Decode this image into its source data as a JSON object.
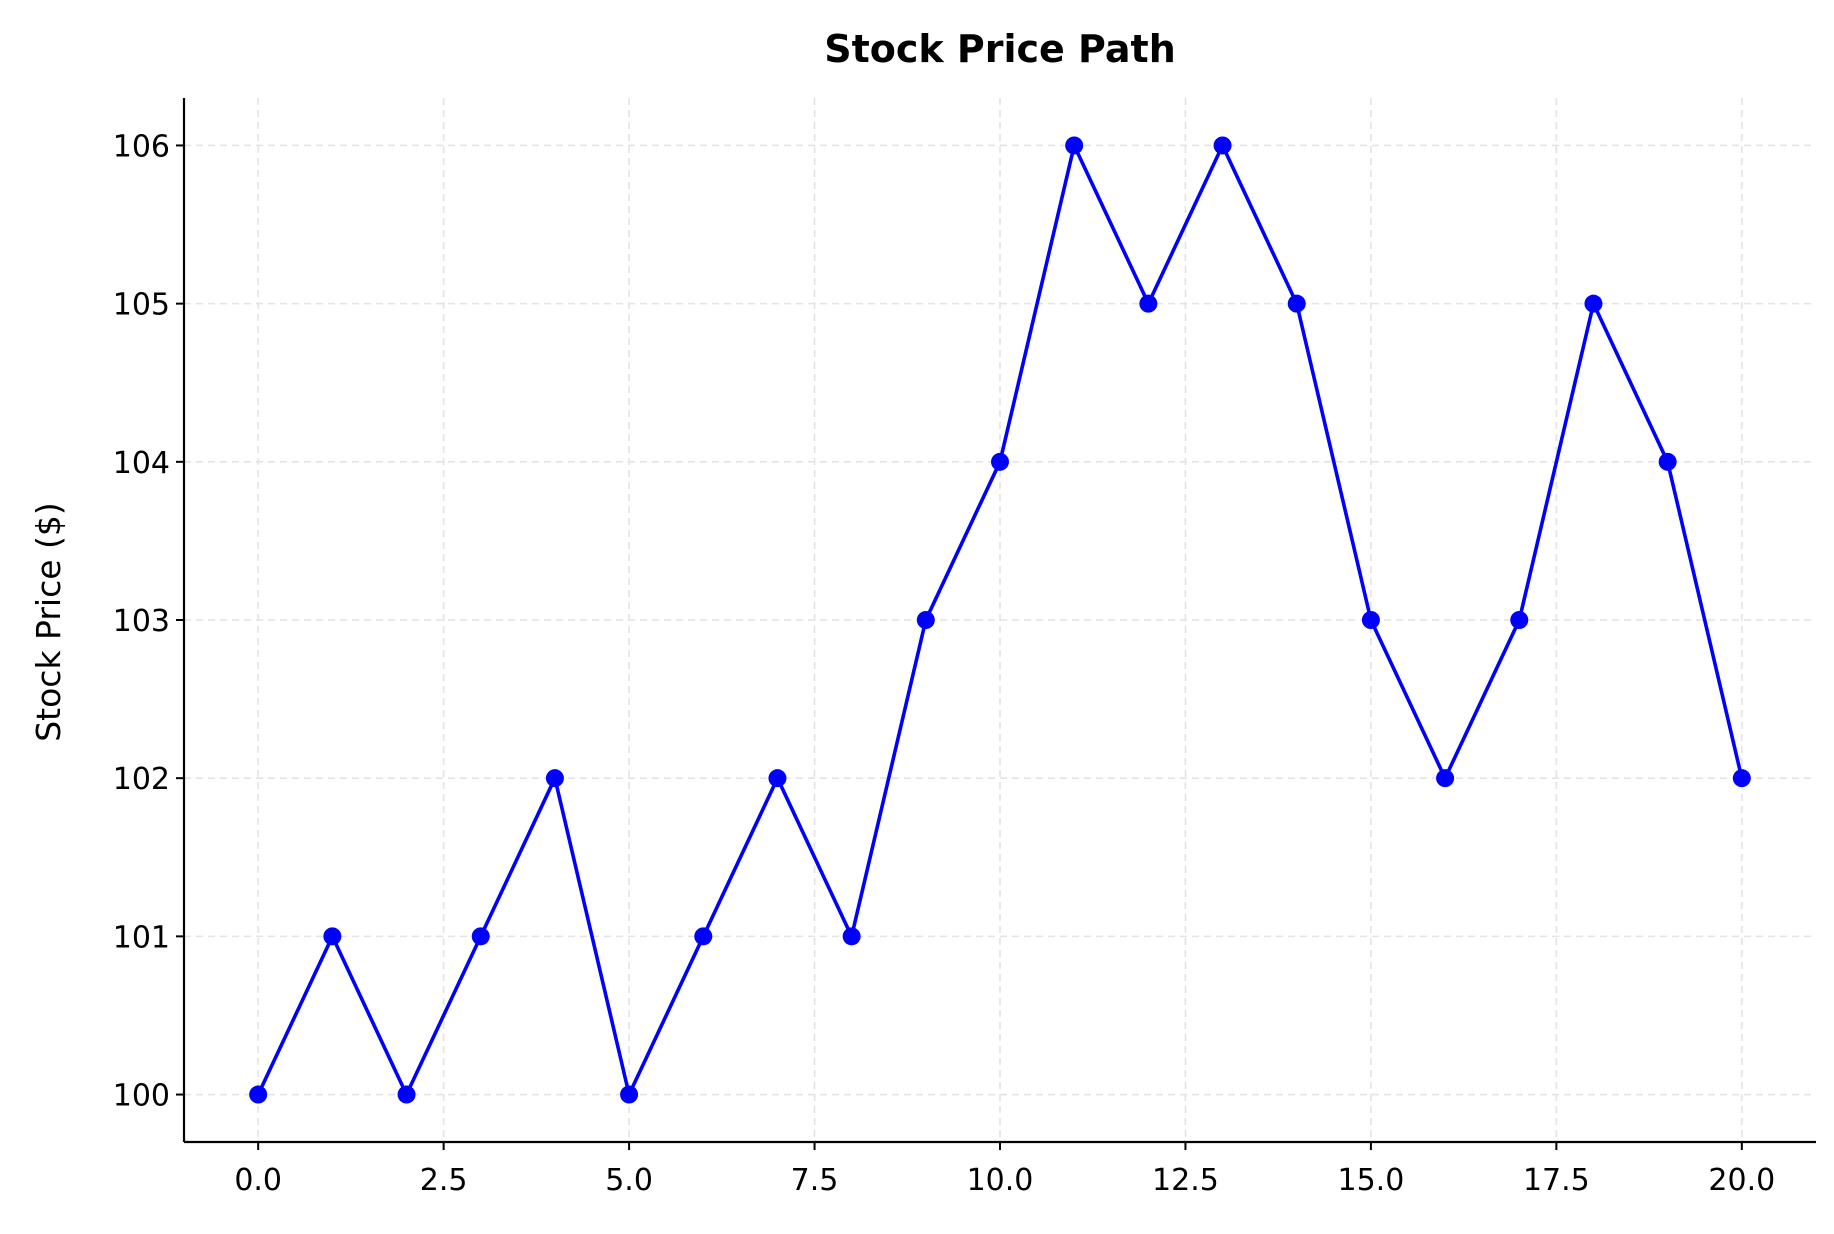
{
  "chart_data": {
    "type": "line",
    "title": "Stock Price Path",
    "xlabel": "",
    "ylabel": "Stock Price ($)",
    "x": [
      0,
      1,
      2,
      3,
      4,
      5,
      6,
      7,
      8,
      9,
      10,
      11,
      12,
      13,
      14,
      15,
      16,
      17,
      18,
      19,
      20
    ],
    "series": [
      {
        "values": [
          100,
          101,
          100,
          101,
          102,
          100,
          101,
          102,
          101,
          103,
          104,
          106,
          105,
          106,
          105,
          103,
          102,
          103,
          105,
          104,
          102
        ],
        "color": "#0000ff",
        "marker": "circle"
      }
    ],
    "xlim": [
      -1,
      21
    ],
    "ylim": [
      99.7,
      106.3
    ],
    "xticks": [
      0.0,
      2.5,
      5.0,
      7.5,
      10.0,
      12.5,
      15.0,
      17.5,
      20.0
    ],
    "xtick_labels": [
      "0.0",
      "2.5",
      "5.0",
      "7.5",
      "10.0",
      "12.5",
      "15.0",
      "17.5",
      "20.0"
    ],
    "yticks": [
      100,
      101,
      102,
      103,
      104,
      105,
      106
    ],
    "ytick_labels": [
      "100",
      "101",
      "102",
      "103",
      "104",
      "105",
      "106"
    ],
    "grid": true,
    "grid_style": "dashed",
    "grid_color": "#e3e3e3",
    "spines": "left-bottom"
  }
}
